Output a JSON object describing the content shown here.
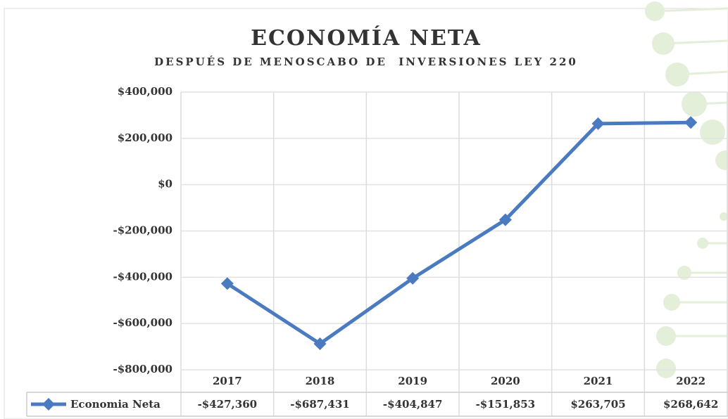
{
  "chart_data": {
    "type": "line",
    "title": "ECONOMÍA NETA",
    "subtitle": "DESPUÉS DE MENOSCABO DE  INVERSIONES LEY 220",
    "categories": [
      "2017",
      "2018",
      "2019",
      "2020",
      "2021",
      "2022"
    ],
    "series": [
      {
        "name": "Economia Neta",
        "color": "#4a7abf",
        "values": [
          -427360,
          -687431,
          -404847,
          -151853,
          263705,
          268642
        ],
        "value_labels": [
          "-$427,360",
          "-$687,431",
          "-$404,847",
          "-$151,853",
          "$263,705",
          "$268,642"
        ]
      }
    ],
    "ylim": [
      -800000,
      400000
    ],
    "yticks": [
      {
        "value": 400000,
        "label": "$400,000"
      },
      {
        "value": 200000,
        "label": "$200,000"
      },
      {
        "value": 0,
        "label": "$0"
      },
      {
        "value": -200000,
        "label": "-$200,000"
      },
      {
        "value": -400000,
        "label": "-$400,000"
      },
      {
        "value": -600000,
        "label": "-$600,000"
      },
      {
        "value": -800000,
        "label": "-$800,000"
      }
    ],
    "grid": true
  }
}
